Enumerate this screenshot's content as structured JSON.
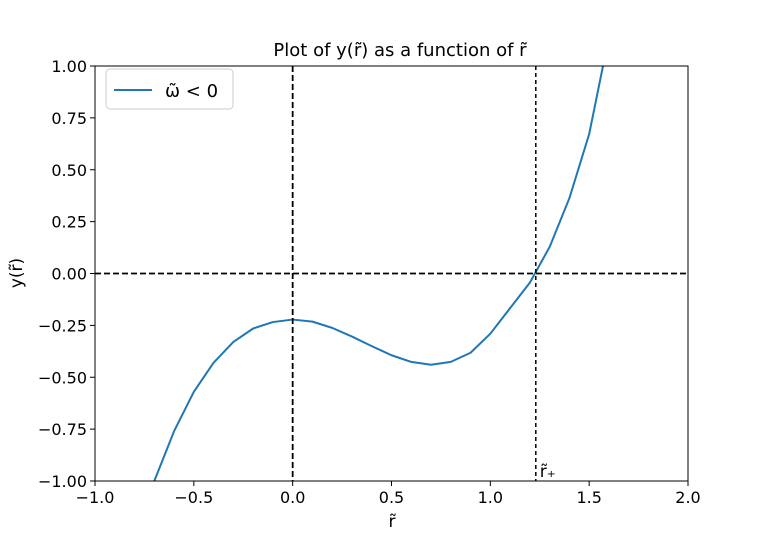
{
  "chart_data": {
    "type": "line",
    "title": "Plot of y(r̃) as a function of r̃",
    "xlabel": "r̃",
    "ylabel": "y(r̃)",
    "xlim": [
      -1.0,
      2.0
    ],
    "ylim": [
      -1.0,
      1.0
    ],
    "xticks": [
      -1.0,
      -0.5,
      0.0,
      0.5,
      1.0,
      1.5,
      2.0
    ],
    "xtick_labels": [
      "−1.0",
      "−0.5",
      "0.0",
      "0.5",
      "1.0",
      "1.5",
      "2.0"
    ],
    "yticks": [
      -1.0,
      -0.75,
      -0.5,
      -0.25,
      0.0,
      0.25,
      0.5,
      0.75,
      1.0
    ],
    "ytick_labels": [
      "−1.00",
      "−0.75",
      "−0.50",
      "−0.25",
      "0.00",
      "0.25",
      "0.50",
      "0.75",
      "1.00"
    ],
    "grid": false,
    "legend_position": "top-left",
    "series": [
      {
        "name": "ω̃ < 0",
        "color": "#1f77b4",
        "x": [
          -0.7,
          -0.6,
          -0.5,
          -0.4,
          -0.3,
          -0.2,
          -0.1,
          0.0,
          0.1,
          0.2,
          0.3,
          0.4,
          0.5,
          0.6,
          0.7,
          0.8,
          0.9,
          1.0,
          1.1,
          1.2,
          1.3,
          1.4,
          1.5,
          1.57
        ],
        "y": [
          -1.0,
          -0.76,
          -0.57,
          -0.43,
          -0.33,
          -0.265,
          -0.234,
          -0.222,
          -0.232,
          -0.262,
          -0.304,
          -0.35,
          -0.394,
          -0.426,
          -0.44,
          -0.426,
          -0.382,
          -0.29,
          -0.167,
          -0.044,
          0.128,
          0.363,
          0.672,
          1.0
        ]
      }
    ],
    "reference_lines": [
      {
        "orientation": "horizontal",
        "value": 0.0,
        "style": "dashed",
        "color": "#000000"
      },
      {
        "orientation": "vertical",
        "value": 0.0,
        "style": "dashed",
        "color": "#000000"
      },
      {
        "orientation": "vertical",
        "value": 1.23,
        "style": "dashed",
        "color": "#000000"
      }
    ],
    "annotations": [
      {
        "text": "r̃₊",
        "x": 1.23,
        "y": -1.0
      }
    ]
  }
}
